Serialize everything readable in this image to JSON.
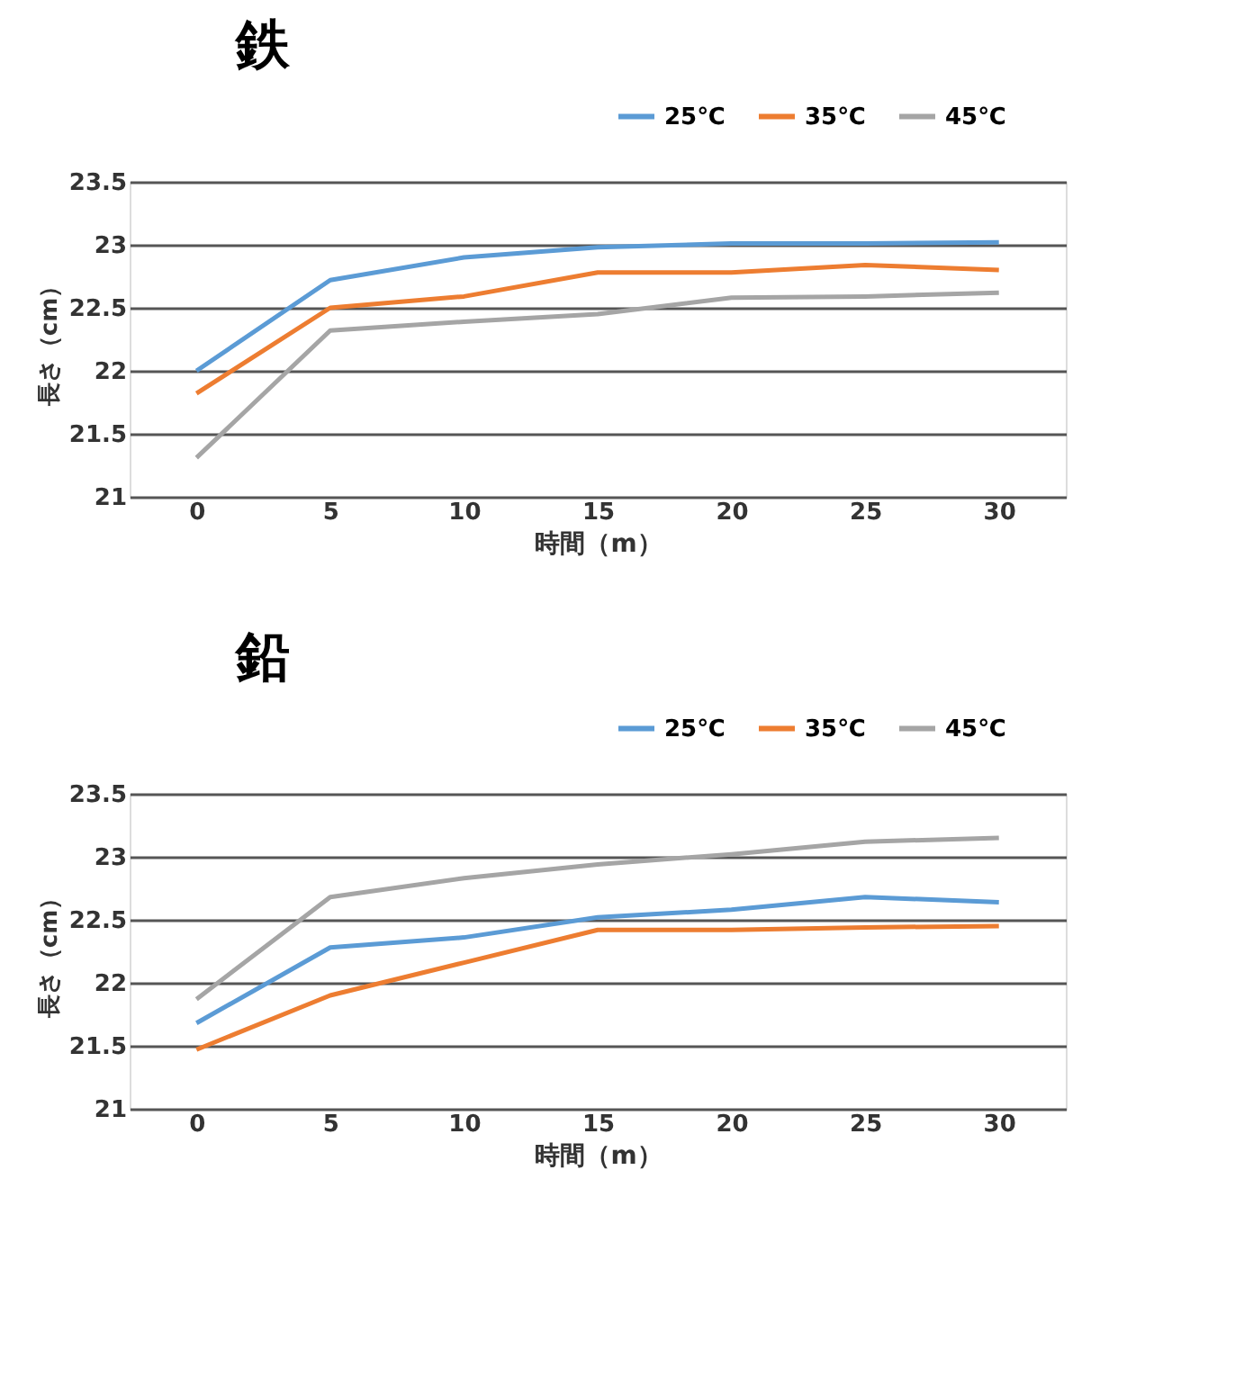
{
  "chart_data": [
    {
      "type": "line",
      "title": "鉄",
      "xlabel": "時間（m）",
      "ylabel": "長さ（cm）",
      "categories": [
        "0",
        "5",
        "10",
        "15",
        "20",
        "25",
        "30"
      ],
      "series": [
        {
          "name": "25℃",
          "color": "#5b9bd5",
          "values": [
            22.0,
            22.72,
            22.9,
            22.98,
            23.01,
            23.01,
            23.02
          ]
        },
        {
          "name": "35℃",
          "color": "#ed7d31",
          "values": [
            21.82,
            22.5,
            22.59,
            22.78,
            22.78,
            22.84,
            22.8
          ]
        },
        {
          "name": "45℃",
          "color": "#a5a5a5",
          "values": [
            21.31,
            22.32,
            22.39,
            22.45,
            22.58,
            22.59,
            22.62
          ]
        }
      ],
      "ylim": [
        21,
        23.5
      ],
      "yticks": [
        21,
        21.5,
        22,
        22.5,
        23,
        23.5
      ],
      "grid": "y",
      "legend": "top right",
      "marker": "none",
      "line_style": "solid"
    },
    {
      "type": "line",
      "title": "鉛",
      "xlabel": "時間（m）",
      "ylabel": "長さ（cm）",
      "categories": [
        "0",
        "5",
        "10",
        "15",
        "20",
        "25",
        "30"
      ],
      "series": [
        {
          "name": "25℃",
          "color": "#5b9bd5",
          "values": [
            21.68,
            22.28,
            22.36,
            22.52,
            22.58,
            22.68,
            22.64
          ]
        },
        {
          "name": "35℃",
          "color": "#ed7d31",
          "values": [
            21.47,
            21.9,
            22.16,
            22.42,
            22.42,
            22.44,
            22.45
          ]
        },
        {
          "name": "45℃",
          "color": "#a5a5a5",
          "values": [
            21.87,
            22.68,
            22.83,
            22.94,
            23.02,
            23.12,
            23.15
          ]
        }
      ],
      "ylim": [
        21,
        23.5
      ],
      "yticks": [
        21,
        21.5,
        22,
        22.5,
        23,
        23.5
      ],
      "grid": "y",
      "legend": "top right",
      "marker": "none",
      "line_style": "solid"
    }
  ]
}
